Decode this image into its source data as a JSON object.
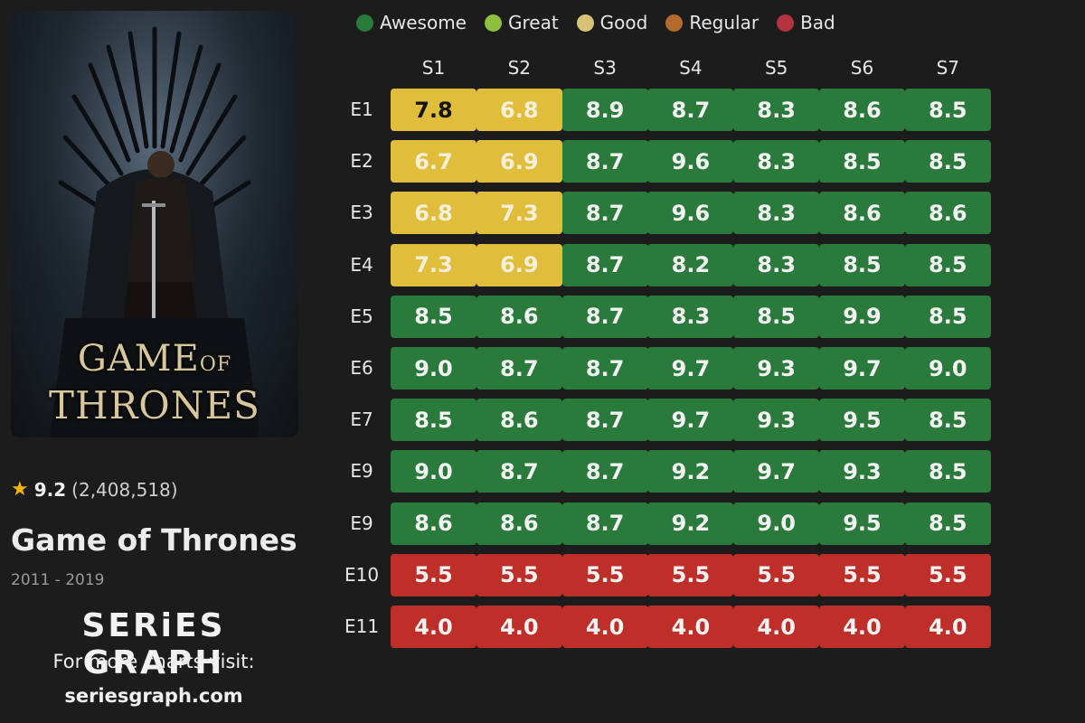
{
  "legend": [
    {
      "label": "Awesome",
      "color": "#2a7a3b"
    },
    {
      "label": "Great",
      "color": "#8fbf3f"
    },
    {
      "label": "Good",
      "color": "#d7c275"
    },
    {
      "label": "Regular",
      "color": "#b56a2c"
    },
    {
      "label": "Bad",
      "color": "#b3343f"
    }
  ],
  "show": {
    "poster_title_line1": "GAME",
    "poster_title_of": "OF",
    "poster_title_line2": "THRONES",
    "rating": "9.2",
    "votes": "(2,408,518)",
    "title": "Game of Thrones",
    "years": "2011 - 2019"
  },
  "footer": {
    "brand": "SERiES GRAPH",
    "visit": "For more charts visit:",
    "site": "seriesgraph.com"
  },
  "chart_data": {
    "type": "heatmap",
    "columns": [
      "S1",
      "S2",
      "S3",
      "S4",
      "S5",
      "S6",
      "S7"
    ],
    "rows": [
      "E1",
      "E2",
      "E3",
      "E4",
      "E5",
      "E6",
      "E7",
      "E9",
      "E9",
      "E10",
      "E11"
    ],
    "values": [
      [
        "7.8",
        "6.8",
        "8.9",
        "8.7",
        "8.3",
        "8.6",
        "8.5"
      ],
      [
        "6.7",
        "6.9",
        "8.7",
        "9.6",
        "8.3",
        "8.5",
        "8.5"
      ],
      [
        "6.8",
        "7.3",
        "8.7",
        "9.6",
        "8.3",
        "8.6",
        "8.6"
      ],
      [
        "7.3",
        "6.9",
        "8.7",
        "8.2",
        "8.3",
        "8.5",
        "8.5"
      ],
      [
        "8.5",
        "8.6",
        "8.7",
        "8.3",
        "8.5",
        "9.9",
        "8.5"
      ],
      [
        "9.0",
        "8.7",
        "8.7",
        "9.7",
        "9.3",
        "9.7",
        "9.0"
      ],
      [
        "8.5",
        "8.6",
        "8.7",
        "9.7",
        "9.3",
        "9.5",
        "8.5"
      ],
      [
        "9.0",
        "8.7",
        "8.7",
        "9.2",
        "9.7",
        "9.3",
        "8.5"
      ],
      [
        "8.6",
        "8.6",
        "8.7",
        "9.2",
        "9.0",
        "9.5",
        "8.5"
      ],
      [
        "5.5",
        "5.5",
        "5.5",
        "5.5",
        "5.5",
        "5.5",
        "5.5"
      ],
      [
        "4.0",
        "4.0",
        "4.0",
        "4.0",
        "4.0",
        "4.0",
        "4.0"
      ]
    ],
    "cell_colors": {
      "awesome": "#2a7a3b",
      "good": "#e0be3c",
      "bad": "#bf2f2a"
    }
  }
}
